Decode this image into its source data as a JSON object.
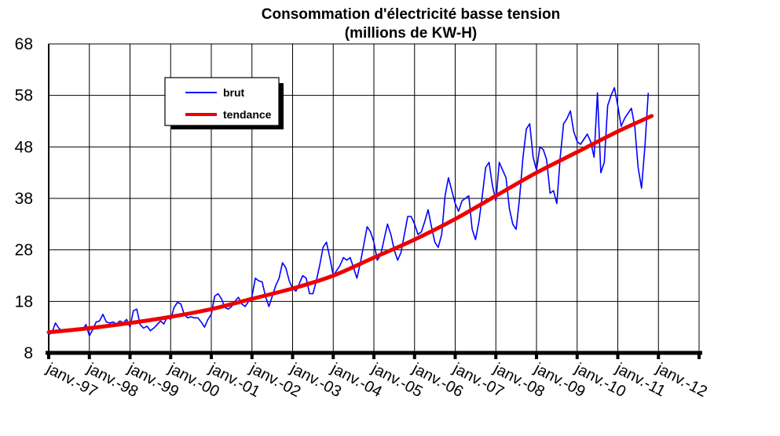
{
  "chart_data": {
    "type": "line",
    "title_lines": [
      "Consommation d'électricité basse tension",
      "(millions de KW-H)"
    ],
    "xlabel": "",
    "ylabel": "",
    "ylim": [
      8,
      68
    ],
    "yticks": [
      8,
      18,
      28,
      38,
      48,
      58,
      68
    ],
    "x_tick_labels": [
      "janv.-97",
      "janv.-98",
      "janv.-99",
      "janv.-00",
      "janv.-01",
      "janv.-02",
      "janv.-03",
      "janv.-04",
      "janv.-05",
      "janv.-06",
      "janv.-07",
      "janv.-08",
      "janv.-09",
      "janv.-10",
      "janv.-11",
      "janv.-12"
    ],
    "x_start_month": "1997-01",
    "grid": true,
    "legend_position": "top-left",
    "series": [
      {
        "name": "brut",
        "color": "#0000ff",
        "values": [
          11.5,
          12.0,
          13.8,
          12.8,
          12.2,
          12.5,
          12.3,
          12.2,
          12.8,
          12.5,
          12.4,
          13.5,
          11.3,
          12.5,
          14.0,
          14.2,
          15.5,
          14.0,
          13.8,
          14.0,
          13.6,
          14.2,
          13.8,
          14.5,
          13.0,
          16.2,
          16.5,
          13.5,
          12.8,
          13.2,
          12.3,
          12.8,
          13.5,
          14.2,
          13.6,
          15.0,
          14.5,
          16.8,
          17.8,
          17.5,
          15.5,
          14.8,
          15.0,
          14.8,
          14.8,
          14.0,
          13.0,
          14.5,
          15.5,
          19.0,
          19.5,
          18.5,
          16.8,
          16.5,
          17.0,
          18.0,
          18.8,
          17.5,
          17.0,
          18.0,
          19.0,
          22.5,
          22.0,
          21.8,
          19.0,
          17.0,
          19.0,
          21.0,
          22.5,
          25.5,
          24.5,
          22.0,
          20.5,
          20.0,
          21.5,
          23.0,
          22.5,
          19.5,
          19.5,
          22.0,
          25.0,
          28.5,
          29.5,
          26.5,
          23.0,
          24.0,
          25.0,
          26.5,
          26.0,
          26.5,
          24.5,
          22.5,
          25.5,
          29.0,
          32.5,
          31.5,
          29.5,
          26.0,
          27.0,
          30.0,
          33.0,
          31.0,
          28.0,
          26.0,
          27.5,
          31.0,
          34.5,
          34.5,
          33.0,
          31.0,
          31.5,
          33.5,
          35.8,
          32.5,
          29.5,
          28.5,
          31.0,
          38.5,
          42.0,
          39.5,
          37.0,
          35.5,
          37.5,
          38.0,
          38.5,
          32.0,
          30.0,
          33.5,
          38.5,
          44.0,
          45.0,
          40.5,
          37.5,
          45.0,
          43.5,
          42.0,
          36.0,
          33.0,
          32.0,
          38.0,
          46.0,
          51.5,
          52.5,
          46.0,
          43.5,
          48.0,
          47.5,
          45.5,
          39.0,
          39.5,
          37.0,
          46.0,
          52.5,
          53.5,
          55.0,
          51.0,
          49.0,
          48.5,
          49.5,
          50.5,
          49.0,
          46.0,
          58.5,
          43.0,
          45.0,
          56.0,
          58.0,
          59.5,
          56.0,
          52.0,
          53.5,
          54.5,
          55.5,
          52.0,
          44.0,
          40.0,
          48.0,
          58.5
        ]
      },
      {
        "name": "tendance",
        "color": "#ee0000",
        "anchors": [
          [
            0,
            12.0
          ],
          [
            12,
            12.8
          ],
          [
            24,
            13.8
          ],
          [
            36,
            15.0
          ],
          [
            48,
            16.5
          ],
          [
            60,
            18.5
          ],
          [
            72,
            20.5
          ],
          [
            84,
            23.0
          ],
          [
            96,
            26.5
          ],
          [
            108,
            30.0
          ],
          [
            120,
            34.0
          ],
          [
            132,
            38.5
          ],
          [
            144,
            43.0
          ],
          [
            156,
            47.0
          ],
          [
            168,
            51.0
          ],
          [
            178,
            54.0
          ]
        ]
      }
    ]
  }
}
